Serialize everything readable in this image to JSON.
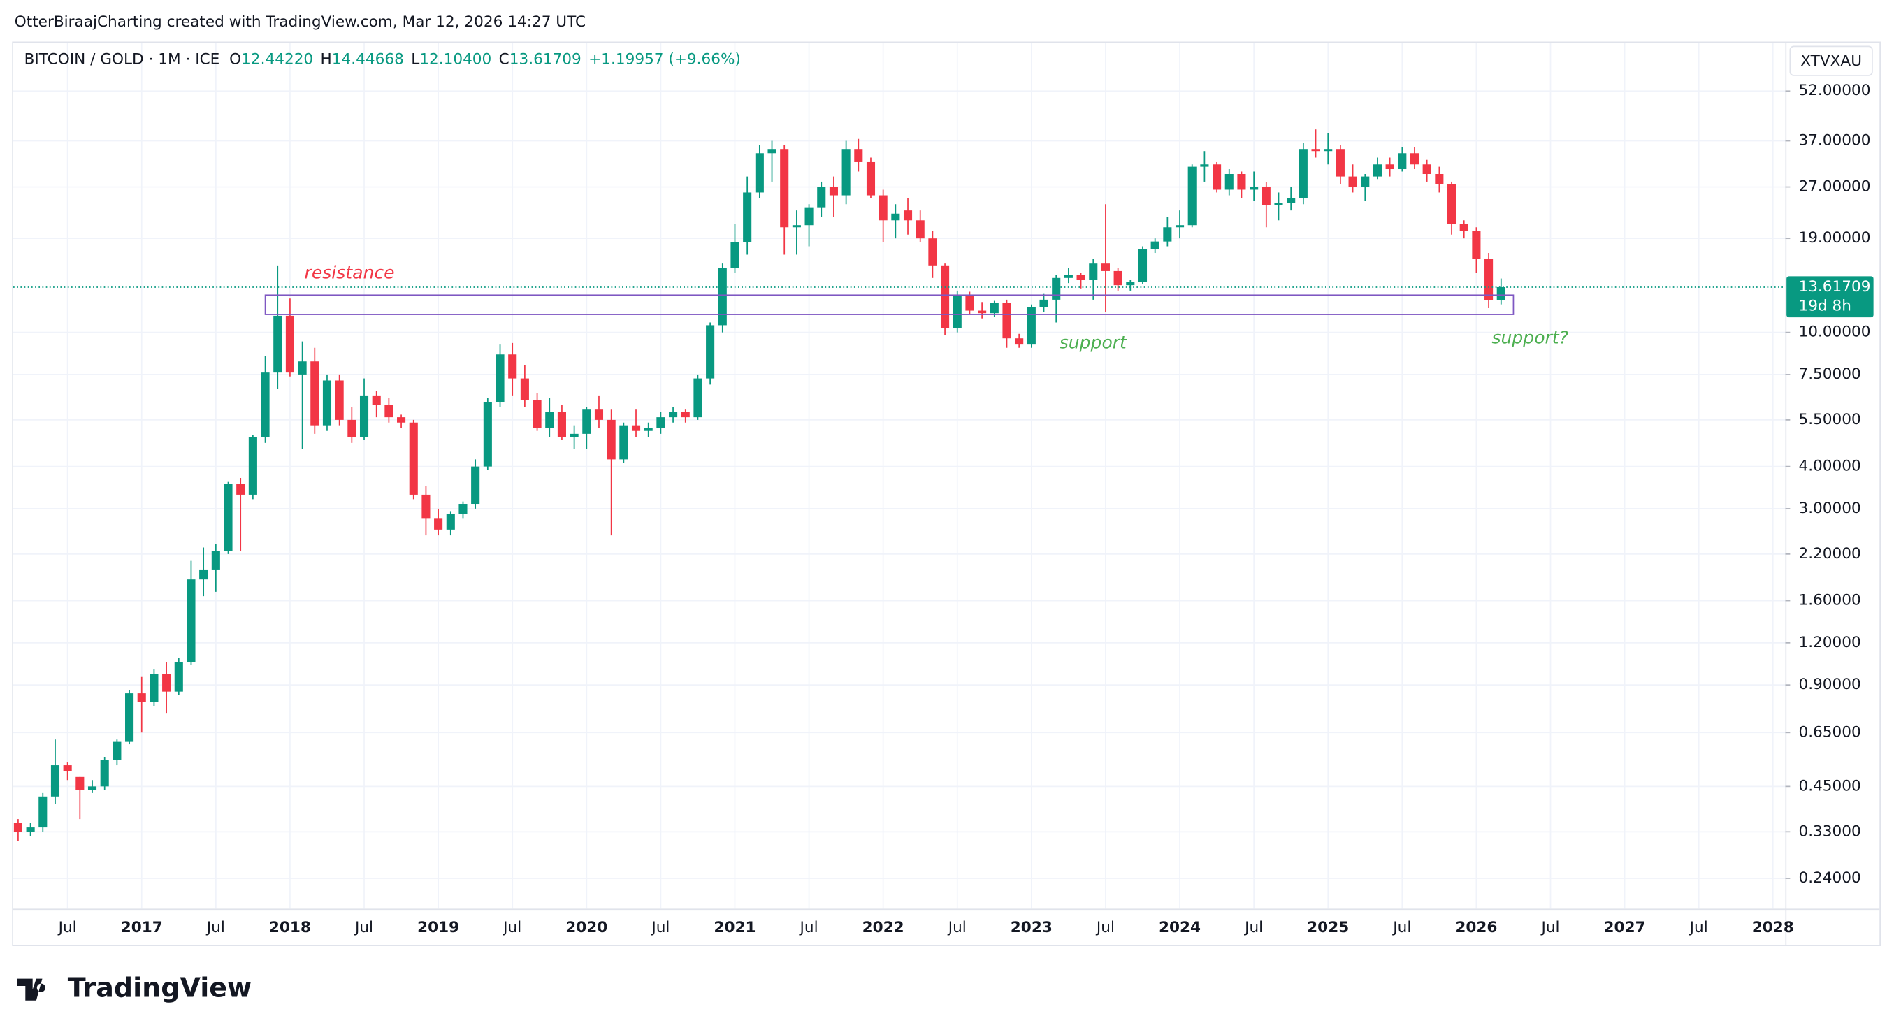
{
  "header": {
    "credit": "OtterBiraajCharting created with TradingView.com, Mar 12, 2026 14:27 UTC",
    "logo": "TradingView"
  },
  "chart_data": {
    "type": "candlestick",
    "title": "BITCOIN / GOLD · 1M · ICE",
    "legend": [
      {
        "label": "O",
        "value": "12.44220"
      },
      {
        "label": "H",
        "value": "14.44668"
      },
      {
        "label": "L",
        "value": "12.10400"
      },
      {
        "label": "C",
        "value": "13.61709"
      }
    ],
    "change": "+1.19957 (+9.66%)",
    "symbol": "XTVXAU",
    "last_price_label": "13.61709",
    "countdown": "19d 8h",
    "up_color": "#089981",
    "down_color": "#f23645",
    "log_scale": true,
    "grid": true,
    "x": [
      "2016-03",
      "2016-04",
      "2016-05",
      "2016-06",
      "2016-07",
      "2016-08",
      "2016-09",
      "2016-10",
      "2016-11",
      "2016-12",
      "2017-01",
      "2017-02",
      "2017-03",
      "2017-04",
      "2017-05",
      "2017-06",
      "2017-07",
      "2017-08",
      "2017-09",
      "2017-10",
      "2017-11",
      "2017-12",
      "2018-01",
      "2018-02",
      "2018-03",
      "2018-04",
      "2018-05",
      "2018-06",
      "2018-07",
      "2018-08",
      "2018-09",
      "2018-10",
      "2018-11",
      "2018-12",
      "2019-01",
      "2019-02",
      "2019-03",
      "2019-04",
      "2019-05",
      "2019-06",
      "2019-07",
      "2019-08",
      "2019-09",
      "2019-10",
      "2019-11",
      "2019-12",
      "2020-01",
      "2020-02",
      "2020-03",
      "2020-04",
      "2020-05",
      "2020-06",
      "2020-07",
      "2020-08",
      "2020-09",
      "2020-10",
      "2020-11",
      "2020-12",
      "2021-01",
      "2021-02",
      "2021-03",
      "2021-04",
      "2021-05",
      "2021-06",
      "2021-07",
      "2021-08",
      "2021-09",
      "2021-10",
      "2021-11",
      "2021-12",
      "2022-01",
      "2022-02",
      "2022-03",
      "2022-04",
      "2022-05",
      "2022-06",
      "2022-07",
      "2022-08",
      "2022-09",
      "2022-10",
      "2022-11",
      "2022-12",
      "2023-01",
      "2023-02",
      "2023-03",
      "2023-04",
      "2023-05",
      "2023-06",
      "2023-07",
      "2023-08",
      "2023-09",
      "2023-10",
      "2023-11",
      "2023-12",
      "2024-01",
      "2024-02",
      "2024-03",
      "2024-04",
      "2024-05",
      "2024-06",
      "2024-07",
      "2024-08",
      "2024-09",
      "2024-10",
      "2024-11",
      "2024-12",
      "2025-01",
      "2025-02",
      "2025-03",
      "2025-04",
      "2025-05",
      "2025-06",
      "2025-07",
      "2025-08",
      "2025-09",
      "2025-10",
      "2025-11",
      "2025-12",
      "2026-01",
      "2026-02",
      "2026-03"
    ],
    "open": [
      0.35,
      0.33,
      0.34,
      0.42,
      0.52,
      0.48,
      0.44,
      0.45,
      0.54,
      0.61,
      0.85,
      0.8,
      0.97,
      0.86,
      1.05,
      1.85,
      1.98,
      2.25,
      3.55,
      3.3,
      4.9,
      7.6,
      11.2,
      7.5,
      8.2,
      5.3,
      7.2,
      5.5,
      4.9,
      6.5,
      6.1,
      5.6,
      5.4,
      3.3,
      2.8,
      2.6,
      2.9,
      3.1,
      4.0,
      6.2,
      8.6,
      7.3,
      6.3,
      5.2,
      5.8,
      4.9,
      5.0,
      5.9,
      5.5,
      4.2,
      5.3,
      5.1,
      5.2,
      5.6,
      5.8,
      5.6,
      7.3,
      10.5,
      15.5,
      18.5,
      26,
      34,
      35,
      20.5,
      20.8,
      23.5,
      27,
      25.5,
      35,
      32,
      25.5,
      21.5,
      23,
      21.5,
      19,
      15.8,
      10.3,
      12.9,
      11.6,
      11.4,
      12.2,
      9.6,
      9.2,
      11.9,
      12.5,
      14.5,
      14.8,
      14.3,
      16,
      15.2,
      13.8,
      14.1,
      17.7,
      18.6,
      20.5,
      20.8,
      31,
      31.5,
      26.5,
      29.5,
      26.5,
      27,
      23.8,
      24.2,
      25,
      35,
      34.5,
      35,
      29,
      27,
      29,
      31.5,
      30.5,
      34,
      31.5,
      29.5,
      27.5,
      21,
      20,
      16.5,
      12.4422
    ],
    "high": [
      0.36,
      0.35,
      0.43,
      0.62,
      0.53,
      0.48,
      0.47,
      0.55,
      0.62,
      0.87,
      0.95,
      1.0,
      1.05,
      1.08,
      2.1,
      2.3,
      2.35,
      3.6,
      3.7,
      4.95,
      8.5,
      15.8,
      12.6,
      9.4,
      9,
      7.5,
      7.5,
      6.0,
      7.3,
      6.7,
      6.4,
      5.7,
      5.5,
      3.5,
      3.0,
      2.95,
      3.15,
      4.2,
      6.4,
      9.2,
      9.3,
      8.0,
      6.6,
      6.4,
      6.1,
      5.3,
      6.0,
      6.5,
      5.9,
      5.4,
      5.9,
      5.4,
      5.8,
      6.0,
      5.9,
      7.5,
      10.7,
      16,
      21,
      29,
      36,
      37,
      36,
      23,
      24,
      28,
      29,
      37,
      37.5,
      33,
      26.5,
      24,
      25,
      23,
      20,
      16,
      13.3,
      13.2,
      12.3,
      12.4,
      12.5,
      9.9,
      12.1,
      13,
      14.8,
      15.5,
      15,
      16.5,
      24,
      15.5,
      14.3,
      18,
      19,
      22,
      23,
      31.5,
      34.5,
      32,
      30.5,
      30,
      30,
      28,
      26,
      27,
      36.5,
      40,
      39,
      36,
      31.5,
      29.5,
      33,
      33,
      35.5,
      35.5,
      32.5,
      31,
      28,
      21.5,
      20.5,
      17.2,
      14.44668
    ],
    "low": [
      0.31,
      0.32,
      0.33,
      0.4,
      0.47,
      0.36,
      0.43,
      0.44,
      0.52,
      0.6,
      0.65,
      0.78,
      0.74,
      0.84,
      1.03,
      1.65,
      1.7,
      2.2,
      2.25,
      3.2,
      4.7,
      6.8,
      7.4,
      4.5,
      5.0,
      5.1,
      5.3,
      4.7,
      4.8,
      5.6,
      5.4,
      5.2,
      3.2,
      2.5,
      2.5,
      2.5,
      2.8,
      3.0,
      3.9,
      6.0,
      6.5,
      6.0,
      5.1,
      4.9,
      4.8,
      4.5,
      4.5,
      5.2,
      2.5,
      4.1,
      4.9,
      4.9,
      5.0,
      5.4,
      5.4,
      5.5,
      7.0,
      10,
      15,
      17,
      25,
      28,
      17,
      17,
      18,
      22,
      22,
      24,
      30,
      25,
      18.5,
      19,
      19.5,
      18.5,
      14.5,
      9.8,
      10.0,
      11.3,
      11,
      11.1,
      9.0,
      9.0,
      9.0,
      11.5,
      10.7,
      14,
      13.5,
      12.5,
      11.5,
      13.3,
      13.3,
      13.9,
      17.2,
      18,
      19,
      20.5,
      28,
      26,
      25.5,
      25,
      24.5,
      20.5,
      21.5,
      23,
      24,
      33,
      31.5,
      27.5,
      26,
      24.5,
      28.5,
      29,
      30,
      30.5,
      28,
      26,
      19.5,
      19,
      15,
      11.8,
      12.104
    ],
    "close": [
      0.33,
      0.34,
      0.42,
      0.52,
      0.5,
      0.44,
      0.45,
      0.54,
      0.61,
      0.85,
      0.8,
      0.97,
      0.86,
      1.05,
      1.85,
      1.98,
      2.25,
      3.55,
      3.3,
      4.9,
      7.6,
      11.2,
      7.6,
      8.2,
      5.3,
      7.2,
      5.5,
      4.9,
      6.5,
      6.1,
      5.6,
      5.4,
      3.3,
      2.8,
      2.6,
      2.9,
      3.1,
      4.0,
      6.2,
      8.6,
      7.3,
      6.3,
      5.2,
      5.8,
      4.9,
      5.0,
      5.9,
      5.5,
      4.2,
      5.3,
      5.1,
      5.2,
      5.6,
      5.8,
      5.6,
      7.3,
      10.5,
      15.5,
      18.5,
      26,
      34,
      35,
      20.5,
      20.8,
      23.5,
      27,
      25.5,
      35,
      32,
      25.5,
      21.5,
      22.5,
      21.5,
      19,
      15.8,
      10.3,
      12.9,
      11.6,
      11.4,
      12.2,
      9.6,
      9.2,
      11.9,
      12.5,
      14.5,
      14.8,
      14.3,
      16,
      15.2,
      13.8,
      14.1,
      17.7,
      18.6,
      20.5,
      20.8,
      31,
      31.5,
      26.5,
      29.5,
      26.5,
      27,
      23.8,
      24.2,
      25,
      35,
      34.5,
      35,
      29,
      27,
      29,
      31.5,
      30.5,
      34,
      31.5,
      29.5,
      27.5,
      21,
      20,
      16.5,
      12.44,
      13.61709
    ],
    "xlim": [
      "2016-03",
      "2028-02"
    ],
    "xticks": [
      {
        "value": "2016-07",
        "label": "Jul"
      },
      {
        "value": "2017-01",
        "label": "2017"
      },
      {
        "value": "2017-07",
        "label": "Jul"
      },
      {
        "value": "2018-01",
        "label": "2018"
      },
      {
        "value": "2018-07",
        "label": "Jul"
      },
      {
        "value": "2019-01",
        "label": "2019"
      },
      {
        "value": "2019-07",
        "label": "Jul"
      },
      {
        "value": "2020-01",
        "label": "2020"
      },
      {
        "value": "2020-07",
        "label": "Jul"
      },
      {
        "value": "2021-01",
        "label": "2021"
      },
      {
        "value": "2021-07",
        "label": "Jul"
      },
      {
        "value": "2022-01",
        "label": "2022"
      },
      {
        "value": "2022-07",
        "label": "Jul"
      },
      {
        "value": "2023-01",
        "label": "2023"
      },
      {
        "value": "2023-07",
        "label": "Jul"
      },
      {
        "value": "2024-01",
        "label": "2024"
      },
      {
        "value": "2024-07",
        "label": "Jul"
      },
      {
        "value": "2025-01",
        "label": "2025"
      },
      {
        "value": "2025-07",
        "label": "Jul"
      },
      {
        "value": "2026-01",
        "label": "2026"
      },
      {
        "value": "2026-07",
        "label": "Jul"
      },
      {
        "value": "2027-01",
        "label": "2027"
      },
      {
        "value": "2027-07",
        "label": "Jul"
      },
      {
        "value": "2028-01",
        "label": "2028"
      }
    ],
    "ylim": [
      0.2,
      70
    ],
    "yticks": [
      {
        "value": 52,
        "label": "52.00000"
      },
      {
        "value": 37,
        "label": "37.00000"
      },
      {
        "value": 27,
        "label": "27.00000"
      },
      {
        "value": 19,
        "label": "19.00000"
      },
      {
        "value": 10,
        "label": "10.00000"
      },
      {
        "value": 7.5,
        "label": "7.50000"
      },
      {
        "value": 5.5,
        "label": "5.50000"
      },
      {
        "value": 4,
        "label": "4.00000"
      },
      {
        "value": 3,
        "label": "3.00000"
      },
      {
        "value": 2.2,
        "label": "2.20000"
      },
      {
        "value": 1.6,
        "label": "1.60000"
      },
      {
        "value": 1.2,
        "label": "1.20000"
      },
      {
        "value": 0.9,
        "label": "0.90000"
      },
      {
        "value": 0.65,
        "label": "0.65000"
      },
      {
        "value": 0.45,
        "label": "0.45000"
      },
      {
        "value": 0.33,
        "label": "0.33000"
      },
      {
        "value": 0.24,
        "label": "0.24000"
      }
    ],
    "zone": {
      "x": [
        "2017-11",
        "2026-04"
      ],
      "y": [
        11.3,
        12.9
      ],
      "color": "#7e57c2"
    },
    "annotations": [
      {
        "text": "resistance",
        "color": "#f23645"
      },
      {
        "text": "support",
        "color": "#4caf50"
      },
      {
        "text": "support?",
        "color": "#4caf50"
      }
    ]
  }
}
